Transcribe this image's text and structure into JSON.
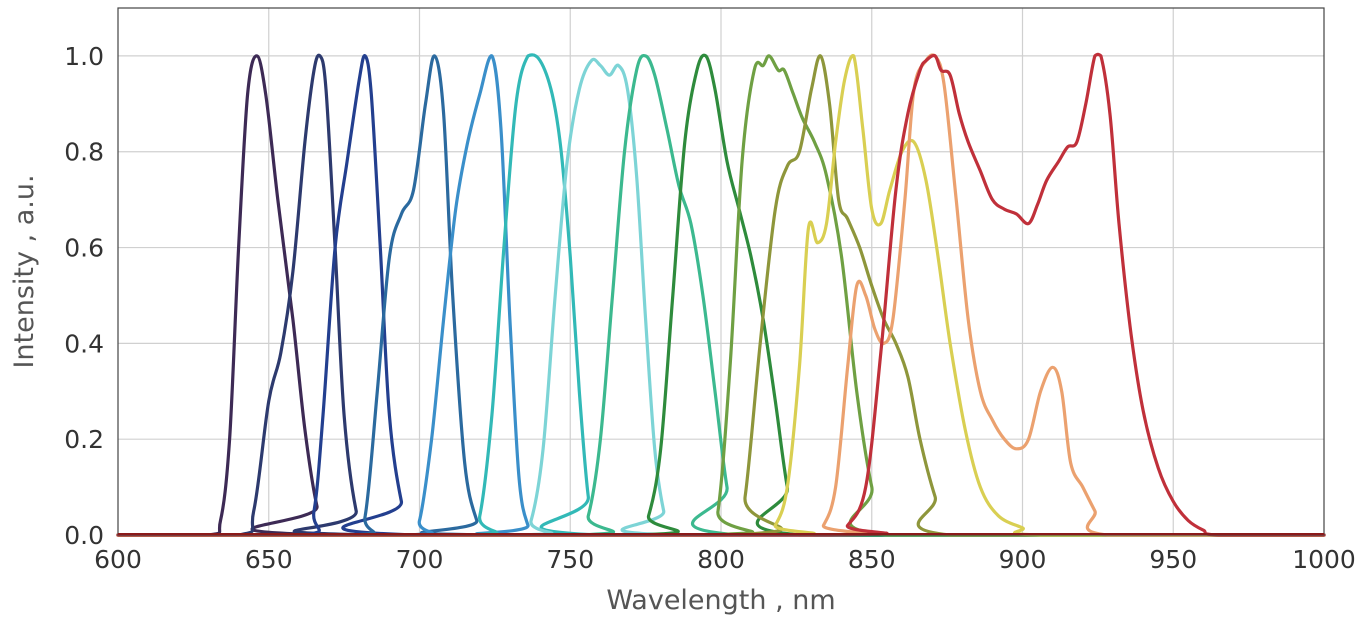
{
  "chart_data": {
    "type": "line",
    "xlabel": "Wavelength , nm",
    "ylabel": "Intensity , a.u.",
    "xlim": [
      600,
      1000
    ],
    "ylim": [
      0,
      1.1
    ],
    "xticks": [
      "600",
      "650",
      "700",
      "750",
      "800",
      "850",
      "900",
      "950",
      "1000"
    ],
    "yticks": [
      "0.0",
      "0.2",
      "0.4",
      "0.6",
      "0.8",
      "1.0"
    ],
    "grid": true,
    "series": [
      {
        "color": "#3d2a55",
        "points": [
          [
            630,
            0
          ],
          [
            634,
            0.03
          ],
          [
            637,
            0.2
          ],
          [
            640,
            0.6
          ],
          [
            643,
            0.92
          ],
          [
            646,
            1.0
          ],
          [
            649,
            0.92
          ],
          [
            653,
            0.7
          ],
          [
            658,
            0.45
          ],
          [
            662,
            0.22
          ],
          [
            666,
            0.06
          ],
          [
            670,
            0
          ]
        ]
      },
      {
        "color": "#2d3a6e",
        "points": [
          [
            640,
            0
          ],
          [
            645,
            0.05
          ],
          [
            650,
            0.28
          ],
          [
            654,
            0.38
          ],
          [
            658,
            0.55
          ],
          [
            662,
            0.82
          ],
          [
            665,
            0.97
          ],
          [
            667,
            1.0
          ],
          [
            669,
            0.93
          ],
          [
            672,
            0.6
          ],
          [
            675,
            0.25
          ],
          [
            679,
            0.05
          ],
          [
            683,
            0
          ]
        ]
      },
      {
        "color": "#233f8f",
        "points": [
          [
            661,
            0
          ],
          [
            665,
            0.05
          ],
          [
            668,
            0.25
          ],
          [
            672,
            0.6
          ],
          [
            676,
            0.78
          ],
          [
            680,
            0.95
          ],
          [
            682,
            1.0
          ],
          [
            684,
            0.92
          ],
          [
            687,
            0.6
          ],
          [
            690,
            0.25
          ],
          [
            694,
            0.07
          ],
          [
            698,
            0
          ]
        ]
      },
      {
        "color": "#2b6a9f",
        "points": [
          [
            678,
            0
          ],
          [
            682,
            0.04
          ],
          [
            686,
            0.3
          ],
          [
            690,
            0.58
          ],
          [
            694,
            0.67
          ],
          [
            698,
            0.72
          ],
          [
            702,
            0.9
          ],
          [
            705,
            1.0
          ],
          [
            708,
            0.88
          ],
          [
            711,
            0.5
          ],
          [
            715,
            0.15
          ],
          [
            719,
            0.03
          ],
          [
            722,
            0
          ]
        ]
      },
      {
        "color": "#3a8fca",
        "points": [
          [
            696,
            0
          ],
          [
            700,
            0.03
          ],
          [
            704,
            0.2
          ],
          [
            708,
            0.45
          ],
          [
            712,
            0.68
          ],
          [
            716,
            0.82
          ],
          [
            720,
            0.92
          ],
          [
            724,
            1.0
          ],
          [
            727,
            0.85
          ],
          [
            730,
            0.45
          ],
          [
            733,
            0.12
          ],
          [
            736,
            0.02
          ],
          [
            739,
            0
          ]
        ]
      },
      {
        "color": "#32b9b7",
        "points": [
          [
            716,
            0
          ],
          [
            720,
            0.04
          ],
          [
            724,
            0.25
          ],
          [
            728,
            0.6
          ],
          [
            732,
            0.9
          ],
          [
            736,
            1.0
          ],
          [
            740,
            0.99
          ],
          [
            744,
            0.92
          ],
          [
            747,
            0.8
          ],
          [
            750,
            0.58
          ],
          [
            753,
            0.3
          ],
          [
            756,
            0.08
          ],
          [
            759,
            0
          ]
        ]
      },
      {
        "color": "#7dd4d6",
        "points": [
          [
            733,
            0
          ],
          [
            737,
            0.03
          ],
          [
            741,
            0.18
          ],
          [
            745,
            0.5
          ],
          [
            749,
            0.78
          ],
          [
            753,
            0.93
          ],
          [
            757,
            0.99
          ],
          [
            760,
            0.98
          ],
          [
            763,
            0.96
          ],
          [
            766,
            0.98
          ],
          [
            769,
            0.93
          ],
          [
            772,
            0.75
          ],
          [
            775,
            0.45
          ],
          [
            778,
            0.18
          ],
          [
            781,
            0.05
          ],
          [
            784,
            0
          ]
        ]
      },
      {
        "color": "#3cb98f",
        "points": [
          [
            752,
            0
          ],
          [
            756,
            0.04
          ],
          [
            760,
            0.2
          ],
          [
            764,
            0.5
          ],
          [
            768,
            0.8
          ],
          [
            772,
            0.97
          ],
          [
            775,
            1.0
          ],
          [
            778,
            0.96
          ],
          [
            782,
            0.85
          ],
          [
            786,
            0.73
          ],
          [
            790,
            0.65
          ],
          [
            794,
            0.5
          ],
          [
            798,
            0.3
          ],
          [
            802,
            0.1
          ],
          [
            806,
            0
          ]
        ]
      },
      {
        "color": "#2e8b3c",
        "points": [
          [
            772,
            0
          ],
          [
            776,
            0.04
          ],
          [
            780,
            0.18
          ],
          [
            784,
            0.5
          ],
          [
            788,
            0.82
          ],
          [
            792,
            0.97
          ],
          [
            795,
            1.0
          ],
          [
            798,
            0.93
          ],
          [
            802,
            0.78
          ],
          [
            806,
            0.68
          ],
          [
            810,
            0.58
          ],
          [
            814,
            0.45
          ],
          [
            818,
            0.28
          ],
          [
            822,
            0.1
          ],
          [
            826,
            0
          ]
        ]
      },
      {
        "color": "#6fa043",
        "points": [
          [
            795,
            0
          ],
          [
            799,
            0.05
          ],
          [
            803,
            0.35
          ],
          [
            807,
            0.78
          ],
          [
            811,
            0.97
          ],
          [
            814,
            0.98
          ],
          [
            816,
            1.0
          ],
          [
            819,
            0.97
          ],
          [
            821,
            0.97
          ],
          [
            824,
            0.92
          ],
          [
            827,
            0.87
          ],
          [
            831,
            0.82
          ],
          [
            835,
            0.75
          ],
          [
            840,
            0.58
          ],
          [
            845,
            0.3
          ],
          [
            850,
            0.1
          ],
          [
            855,
            0
          ]
        ]
      },
      {
        "color": "#8e963b",
        "points": [
          [
            804,
            0
          ],
          [
            808,
            0.08
          ],
          [
            813,
            0.4
          ],
          [
            818,
            0.68
          ],
          [
            822,
            0.77
          ],
          [
            826,
            0.8
          ],
          [
            830,
            0.93
          ],
          [
            833,
            1.0
          ],
          [
            836,
            0.9
          ],
          [
            839,
            0.7
          ],
          [
            842,
            0.66
          ],
          [
            846,
            0.6
          ],
          [
            850,
            0.52
          ],
          [
            854,
            0.45
          ],
          [
            858,
            0.4
          ],
          [
            862,
            0.33
          ],
          [
            866,
            0.2
          ],
          [
            871,
            0.08
          ],
          [
            876,
            0
          ]
        ]
      },
      {
        "color": "#d9cf52",
        "points": [
          [
            814,
            0
          ],
          [
            818,
            0.02
          ],
          [
            822,
            0.1
          ],
          [
            826,
            0.35
          ],
          [
            829,
            0.64
          ],
          [
            832,
            0.61
          ],
          [
            835,
            0.65
          ],
          [
            838,
            0.82
          ],
          [
            841,
            0.95
          ],
          [
            844,
            1.0
          ],
          [
            847,
            0.85
          ],
          [
            850,
            0.68
          ],
          [
            853,
            0.65
          ],
          [
            856,
            0.72
          ],
          [
            860,
            0.8
          ],
          [
            864,
            0.82
          ],
          [
            868,
            0.74
          ],
          [
            872,
            0.58
          ],
          [
            876,
            0.4
          ],
          [
            881,
            0.22
          ],
          [
            886,
            0.1
          ],
          [
            892,
            0.04
          ],
          [
            900,
            0.015
          ],
          [
            906,
            0
          ]
        ]
      },
      {
        "color": "#eba16f",
        "points": [
          [
            830,
            0
          ],
          [
            834,
            0.02
          ],
          [
            838,
            0.1
          ],
          [
            842,
            0.35
          ],
          [
            845,
            0.52
          ],
          [
            848,
            0.5
          ],
          [
            851,
            0.43
          ],
          [
            854,
            0.4
          ],
          [
            857,
            0.45
          ],
          [
            861,
            0.7
          ],
          [
            864,
            0.93
          ],
          [
            868,
            0.99
          ],
          [
            871,
            1.0
          ],
          [
            874,
            0.94
          ],
          [
            878,
            0.7
          ],
          [
            882,
            0.45
          ],
          [
            886,
            0.3
          ],
          [
            890,
            0.24
          ],
          [
            894,
            0.2
          ],
          [
            898,
            0.18
          ],
          [
            902,
            0.2
          ],
          [
            906,
            0.3
          ],
          [
            910,
            0.35
          ],
          [
            913,
            0.3
          ],
          [
            916,
            0.15
          ],
          [
            920,
            0.1
          ],
          [
            924,
            0.05
          ],
          [
            928,
            0
          ]
        ]
      },
      {
        "color": "#c0303a",
        "points": [
          [
            836,
            0
          ],
          [
            842,
            0.02
          ],
          [
            848,
            0.1
          ],
          [
            853,
            0.38
          ],
          [
            858,
            0.72
          ],
          [
            862,
            0.88
          ],
          [
            866,
            0.97
          ],
          [
            868,
            0.99
          ],
          [
            871,
            1.0
          ],
          [
            873,
            0.97
          ],
          [
            876,
            0.96
          ],
          [
            879,
            0.88
          ],
          [
            882,
            0.82
          ],
          [
            886,
            0.76
          ],
          [
            890,
            0.7
          ],
          [
            894,
            0.68
          ],
          [
            898,
            0.67
          ],
          [
            902,
            0.65
          ],
          [
            905,
            0.69
          ],
          [
            908,
            0.74
          ],
          [
            912,
            0.78
          ],
          [
            915,
            0.81
          ],
          [
            918,
            0.82
          ],
          [
            921,
            0.9
          ],
          [
            924,
            1.0
          ],
          [
            926,
            1.0
          ],
          [
            929,
            0.88
          ],
          [
            932,
            0.65
          ],
          [
            936,
            0.42
          ],
          [
            940,
            0.26
          ],
          [
            945,
            0.14
          ],
          [
            950,
            0.07
          ],
          [
            955,
            0.03
          ],
          [
            960,
            0.01
          ],
          [
            965,
            0
          ]
        ]
      }
    ]
  }
}
